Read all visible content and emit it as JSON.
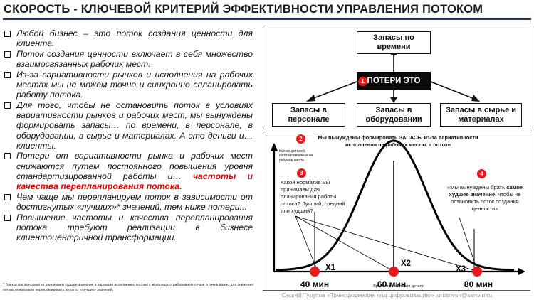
{
  "title": "СКОРОСТЬ - КЛЮЧЕВОЙ КРИТЕРИЙ ЭФФЕКТИВНОСТИ УПРАВЛЕНИЯ ПОТОКОМ",
  "bullets": [
    {
      "text": "Любой бизнес – это поток создания ценности для клиента."
    },
    {
      "text": "Поток создания ценности включает в себя множество взаимосвязанных рабочих мест."
    },
    {
      "text": "Из-за вариативности рынков и исполнения на рабочих местах мы не можем точно и синхронно спланировать работу потока."
    },
    {
      "text": "Для того, чтобы не остановить поток в условиях вариативности рынков и рабочих мест, мы вынуждены формировать запасы… по времени, в персонале, в оборудовании, в сырье и материалах. А это деньги и… клиенты."
    },
    {
      "text": "Потери от вариативности рынка и рабочих мест снижаются путем постоянного повышения уровня стандартизированной работы и… ",
      "highlight": "частоты и качества перепланирования потока."
    },
    {
      "text": "Чем чаще мы перепланируем поток в зависимости от достигнутых «лучших»* значений, тем ниже потери..."
    },
    {
      "text": "Повышение частоты и качества перепланирования потока требуют реализации в бизнесе клиентоцентричной трансформации."
    }
  ],
  "footnote": "* Так как мы за норматив принимаем худшее значение в вариации исполнения, по факту мы всегда отрабатываем лучше и очень важно для снижения потерь оперативно перепланировать поток от «лучших» значений.",
  "diagram": {
    "center_label": "ПОТЕРИ ЭТО",
    "center_number": "1",
    "top_box": "Запасы по времени",
    "bottom_boxes": [
      "Запасы в персонале",
      "Запасы в оборудовании",
      "Запасы в сырье и материалах"
    ]
  },
  "chart": {
    "marker2": "2",
    "heading": "Мы вынуждены формировать ЗАПАСЫ из-за вариативности исполнения на рабочих местах в потоке",
    "ylabel": "Кол-во деталей, изготавливаемых на рабочем месте",
    "xlabel": "Время изготовления детали",
    "marker3": "3",
    "question": "Какой норматив мы принимаем для планирования работы потока? Лучший, средний или худший?",
    "marker4": "4",
    "answer_pre": "«Мы вынуждены брать",
    "answer_bold": "самое худшее значение",
    "answer_post": ", чтобы не остановить поток создания ценности»",
    "points": [
      {
        "id": "X1",
        "label": "40 мин"
      },
      {
        "id": "X2",
        "label": "60 мин"
      },
      {
        "id": "X3",
        "label": "80 мин"
      }
    ],
    "accent": "#e31b1b"
  },
  "credit": "Сергей Турусов «Трансформация под цифровизацию» turusovsn@ssman.ru"
}
